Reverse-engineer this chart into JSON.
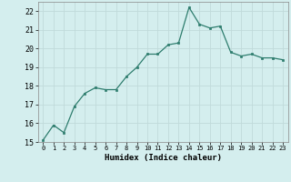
{
  "x": [
    0,
    1,
    2,
    3,
    4,
    5,
    6,
    7,
    8,
    9,
    10,
    11,
    12,
    13,
    14,
    15,
    16,
    17,
    18,
    19,
    20,
    21,
    22,
    23
  ],
  "y": [
    15.1,
    15.9,
    15.5,
    16.9,
    17.6,
    17.9,
    17.8,
    17.8,
    18.5,
    19.0,
    19.7,
    19.7,
    20.2,
    20.3,
    22.2,
    21.3,
    21.1,
    21.2,
    19.8,
    19.6,
    19.7,
    19.5,
    19.5,
    19.4
  ],
  "line_color": "#2e7d6e",
  "marker_color": "#2e7d6e",
  "bg_color": "#d4eeee",
  "grid_color": "#c0dada",
  "xlabel": "Humidex (Indice chaleur)",
  "ylim": [
    15,
    22.5
  ],
  "xlim": [
    -0.5,
    23.5
  ],
  "yticks": [
    15,
    16,
    17,
    18,
    19,
    20,
    21,
    22
  ],
  "xticks": [
    0,
    1,
    2,
    3,
    4,
    5,
    6,
    7,
    8,
    9,
    10,
    11,
    12,
    13,
    14,
    15,
    16,
    17,
    18,
    19,
    20,
    21,
    22,
    23
  ]
}
